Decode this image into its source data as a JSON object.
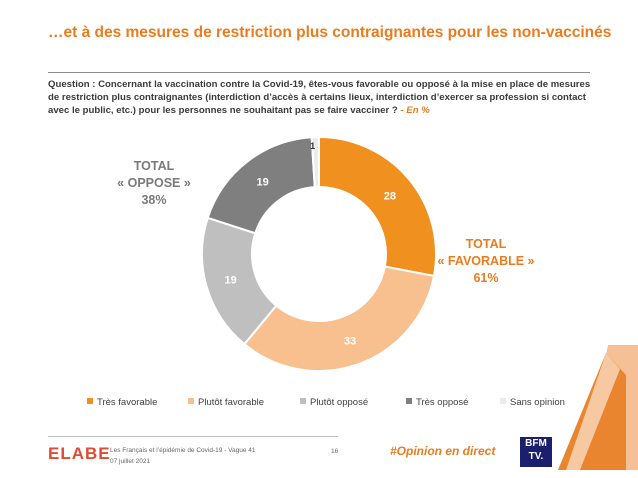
{
  "title": "…et à des mesures de restriction plus contraignantes pour les non-vaccinés",
  "question": {
    "text": "Question : Concernant la vaccination contre la Covid-19, êtes-vous favorable ou opposé à la mise en place de mesures de restriction plus contraignantes (interdiction d’accès à certains lieux, interdiction d’exercer sa profession si contact avec le public, etc.) pour les personnes ne souhaitant pas se faire vacciner ?",
    "unit": " - En %"
  },
  "totals": {
    "oppose": {
      "line1": "TOTAL",
      "line2": "« OPPOSE »",
      "line3": "38%"
    },
    "favorable": {
      "line1": "TOTAL",
      "line2": "« FAVORABLE »",
      "line3": "61%"
    }
  },
  "chart_data": {
    "type": "pie",
    "donut": true,
    "categories": [
      "Très favorable",
      "Plutôt favorable",
      "Plutôt opposé",
      "Très opposé",
      "Sans opinion"
    ],
    "values": [
      28,
      33,
      19,
      19,
      1
    ],
    "colors": [
      "#f0901f",
      "#f9c08f",
      "#bfbfbf",
      "#7f7f7f",
      "#ececec"
    ],
    "label_colors": [
      "#ffffff",
      "#ffffff",
      "#ffffff",
      "#ffffff",
      "#333333"
    ],
    "legend_position": "bottom"
  },
  "footer": {
    "brand": "ELABE",
    "line1": "Les Français et l’épidémie de Covid-19 - Vague 41",
    "line2": "07 juillet 2021",
    "page": "16",
    "hashtag": "#Opinion en direct",
    "partner_line1": "BFM",
    "partner_line2": "TV."
  }
}
